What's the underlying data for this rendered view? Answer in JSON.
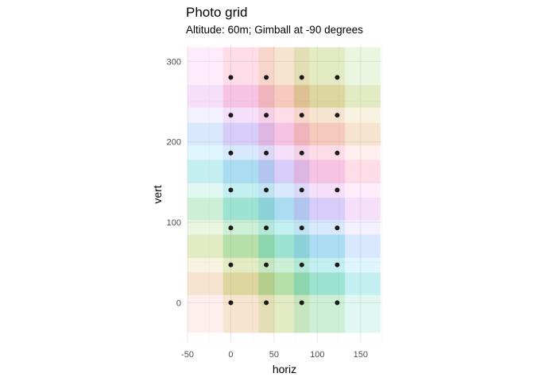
{
  "chart_data": {
    "type": "scatter",
    "title": "Photo grid",
    "subtitle": "Altitude: 60m; Gimball at -90 degrees",
    "xlabel": "horiz",
    "ylabel": "vert",
    "xlim": [
      -50,
      175
    ],
    "ylim": [
      -50,
      320
    ],
    "x_ticks": [
      -50,
      0,
      50,
      100,
      150
    ],
    "x_tick_labels": [
      "-50",
      "0",
      "50",
      "100",
      "150"
    ],
    "y_ticks": [
      0,
      100,
      200,
      300
    ],
    "y_tick_labels": [
      "0",
      "100",
      "200",
      "300"
    ],
    "grid": true,
    "points": [
      {
        "x": 0,
        "y": 0
      },
      {
        "x": 41,
        "y": 0
      },
      {
        "x": 82,
        "y": 0
      },
      {
        "x": 123,
        "y": 0
      },
      {
        "x": 0,
        "y": 47
      },
      {
        "x": 41,
        "y": 47
      },
      {
        "x": 82,
        "y": 47
      },
      {
        "x": 123,
        "y": 47
      },
      {
        "x": 0,
        "y": 93
      },
      {
        "x": 41,
        "y": 93
      },
      {
        "x": 82,
        "y": 93
      },
      {
        "x": 123,
        "y": 93
      },
      {
        "x": 0,
        "y": 140
      },
      {
        "x": 41,
        "y": 140
      },
      {
        "x": 82,
        "y": 140
      },
      {
        "x": 123,
        "y": 140
      },
      {
        "x": 0,
        "y": 186
      },
      {
        "x": 41,
        "y": 186
      },
      {
        "x": 82,
        "y": 186
      },
      {
        "x": 123,
        "y": 186
      },
      {
        "x": 0,
        "y": 233
      },
      {
        "x": 41,
        "y": 233
      },
      {
        "x": 82,
        "y": 233
      },
      {
        "x": 123,
        "y": 233
      },
      {
        "x": 0,
        "y": 280
      },
      {
        "x": 41,
        "y": 280
      },
      {
        "x": 82,
        "y": 280
      },
      {
        "x": 123,
        "y": 280
      }
    ],
    "footprint": {
      "width": 100,
      "height": 75
    },
    "footprint_colors": [
      "#f8766d",
      "#c49a00",
      "#53b400",
      "#00c094",
      "#00b6eb",
      "#a58aff",
      "#fb61d7"
    ],
    "footprint_opacity": 0.12,
    "point_color": "#1a1a1a"
  }
}
